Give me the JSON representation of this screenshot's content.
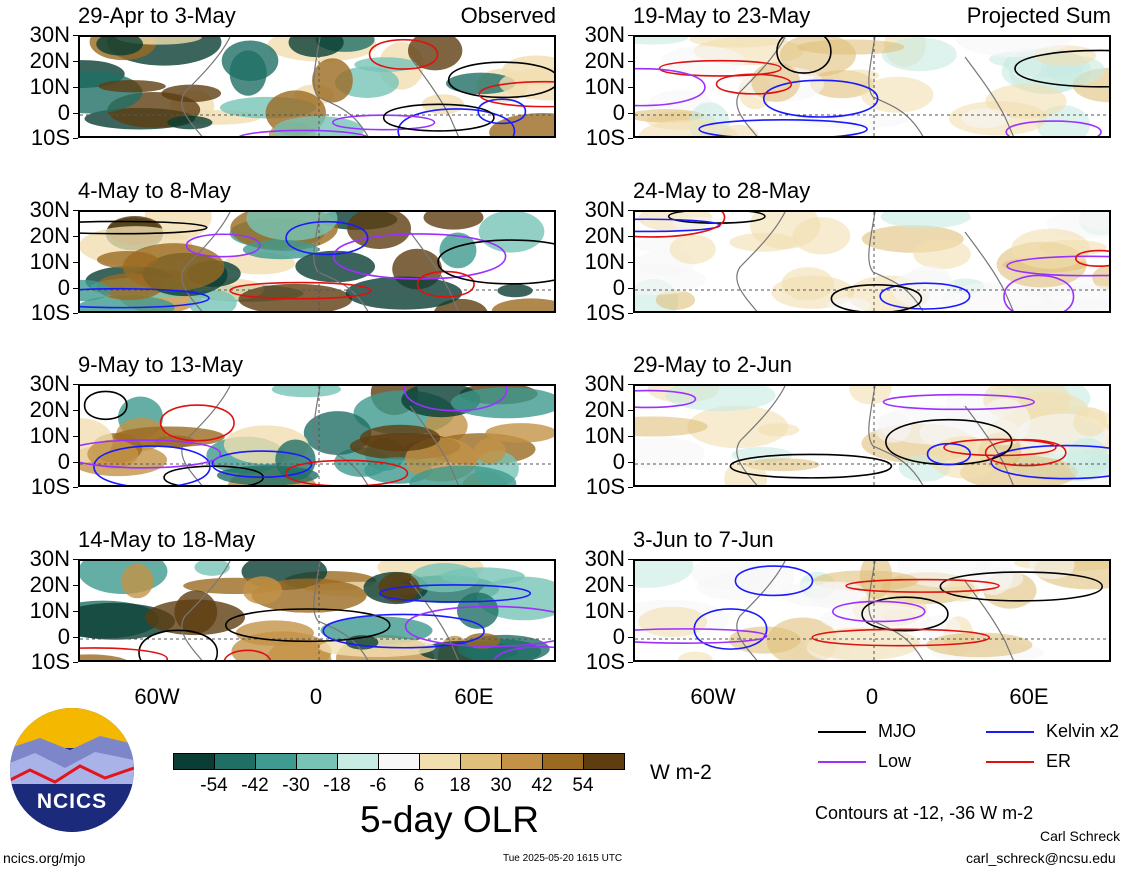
{
  "panels_left": [
    {
      "title": "29-Apr to 3-May",
      "tag": "Observed"
    },
    {
      "title": "4-May to 8-May",
      "tag": ""
    },
    {
      "title": "9-May to 13-May",
      "tag": ""
    },
    {
      "title": "14-May to 18-May",
      "tag": ""
    }
  ],
  "panels_right": [
    {
      "title": "19-May to 23-May",
      "tag": "Projected Sum"
    },
    {
      "title": "24-May to 28-May",
      "tag": ""
    },
    {
      "title": "29-May to 2-Jun",
      "tag": ""
    },
    {
      "title": "3-Jun to 7-Jun",
      "tag": ""
    }
  ],
  "lat_labels": [
    "30N",
    "20N",
    "10N",
    "0",
    "10S"
  ],
  "lon_labels": [
    "60W",
    "0",
    "60E"
  ],
  "legend": {
    "mjo": "MJO",
    "kelvin": "Kelvin x2",
    "low": "Low",
    "er": "ER",
    "contours": "Contours at -12, -36 W m-2"
  },
  "colorbar": {
    "labels": [
      "-54",
      "-42",
      "-30",
      "-18",
      "-6",
      "6",
      "18",
      "30",
      "42",
      "54"
    ],
    "colors": [
      "#0a3d33",
      "#1f6f65",
      "#3f9a8f",
      "#77c4b6",
      "#c8ebe3",
      "#f7f7f7",
      "#f1dfb0",
      "#dfbf7a",
      "#c39246",
      "#9b6a22",
      "#5e3d10"
    ],
    "unit": "W m-2",
    "title": "5-day OLR"
  },
  "logo_text": "NCICS",
  "footer": {
    "site": "ncics.org/mjo",
    "timestamp": "Tue 2025-05-20 1615 UTC",
    "author": "Carl Schreck",
    "email": "carl_schreck@ncsu.edu"
  },
  "colors": {
    "mjo": "#000000",
    "kelvin": "#1a1aff",
    "low": "#9b30ff",
    "er": "#e01010"
  }
}
